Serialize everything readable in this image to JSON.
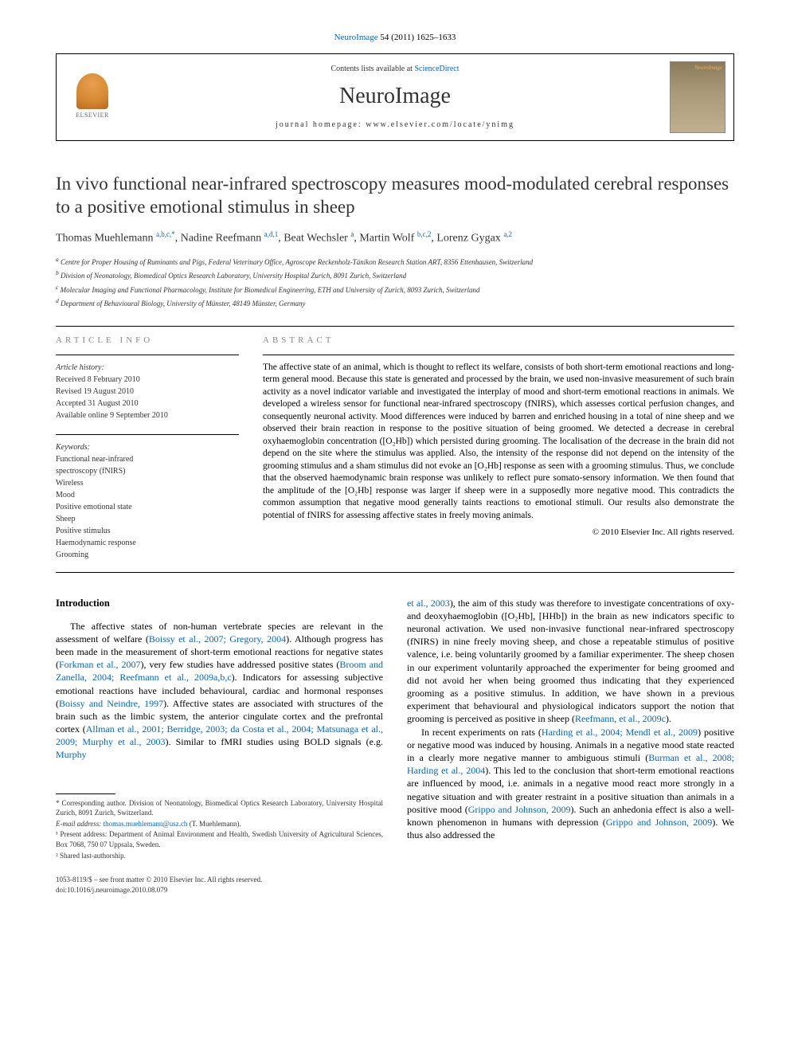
{
  "citation": {
    "journal_link": "NeuroImage",
    "vol_pages": " 54 (2011) 1625–1633"
  },
  "header": {
    "elsevier": "ELSEVIER",
    "contents_prefix": "Contents lists available at ",
    "contents_link": "ScienceDirect",
    "journal": "NeuroImage",
    "homepage_label": "journal homepage: ",
    "homepage_url": "www.elsevier.com/locate/ynimg",
    "cover_label": "NeuroImage"
  },
  "title": "In vivo functional near-infrared spectroscopy measures mood-modulated cerebral responses to a positive emotional stimulus in sheep",
  "authors": [
    {
      "name": "Thomas Muehlemann ",
      "sup": "a,b,c,",
      "star": "*"
    },
    {
      "name": ", Nadine Reefmann ",
      "sup": "a,d,1"
    },
    {
      "name": ", Beat Wechsler ",
      "sup": "a"
    },
    {
      "name": ", Martin Wolf ",
      "sup": "b,c,2"
    },
    {
      "name": ", Lorenz Gygax ",
      "sup": "a,2"
    }
  ],
  "affiliations": {
    "a": "Centre for Proper Housing of Ruminants and Pigs, Federal Veterinary Office, Agroscope Reckenholz-Tänikon Research Station ART, 8356 Ettenhausen, Switzerland",
    "b": "Division of Neonatology, Biomedical Optics Research Laboratory, University Hospital Zurich, 8091 Zurich, Switzerland",
    "c": "Molecular Imaging and Functional Pharmacology, Institute for Biomedical Engineering, ETH and University of Zurich, 8093 Zurich, Switzerland",
    "d": "Department of Behavioural Biology, University of Münster, 48149 Münster, Germany"
  },
  "article_info": {
    "label": "ARTICLE INFO",
    "history_label": "Article history:",
    "received": "Received 8 February 2010",
    "revised": "Revised 19 August 2010",
    "accepted": "Accepted 31 August 2010",
    "online": "Available online 9 September 2010",
    "keywords_label": "Keywords:",
    "keywords": [
      "Functional near-infrared",
      "spectroscopy (fNIRS)",
      "Wireless",
      "Mood",
      "Positive emotional state",
      "Sheep",
      "Positive stimulus",
      "Haemodynamic response",
      "Grooming"
    ]
  },
  "abstract": {
    "label": "ABSTRACT",
    "text": "The affective state of an animal, which is thought to reflect its welfare, consists of both short-term emotional reactions and long-term general mood. Because this state is generated and processed by the brain, we used non-invasive measurement of such brain activity as a novel indicator variable and investigated the interplay of mood and short-term emotional reactions in animals. We developed a wireless sensor for functional near-infrared spectroscopy (fNIRS), which assesses cortical perfusion changes, and consequently neuronal activity. Mood differences were induced by barren and enriched housing in a total of nine sheep and we observed their brain reaction in response to the positive situation of being groomed. We detected a decrease in cerebral oxyhaemoglobin concentration ([O₂Hb]) which persisted during grooming. The localisation of the decrease in the brain did not depend on the site where the stimulus was applied. Also, the intensity of the response did not depend on the intensity of the grooming stimulus and a sham stimulus did not evoke an [O₂Hb] response as seen with a grooming stimulus. Thus, we conclude that the observed haemodynamic brain response was unlikely to reflect pure somato-sensory information. We then found that the amplitude of the [O₂Hb] response was larger if sheep were in a supposedly more negative mood. This contradicts the common assumption that negative mood generally taints reactions to emotional stimuli. Our results also demonstrate the potential of fNIRS for assessing affective states in freely moving animals.",
    "copyright": "© 2010 Elsevier Inc. All rights reserved."
  },
  "body": {
    "heading": "Introduction",
    "col1_p1_a": "The affective states of non-human vertebrate species are relevant in the assessment of welfare (",
    "col1_ref1": "Boissy et al., 2007; Gregory, 2004",
    "col1_p1_b": "). Although progress has been made in the measurement of short-term emotional reactions for negative states (",
    "col1_ref2": "Forkman et al., 2007",
    "col1_p1_c": "), very few studies have addressed positive states (",
    "col1_ref3": "Broom and Zanella, 2004; Reefmann et al., 2009a,b,c",
    "col1_p1_d": "). Indicators for assessing subjective emotional reactions have included behavioural, cardiac and hormonal responses (",
    "col1_ref4": "Boissy and Neindre, 1997",
    "col1_p1_e": "). Affective states are associated with structures of the brain such as the limbic system, the anterior cingulate cortex and the prefrontal cortex (",
    "col1_ref5": "Allman et al., 2001; Berridge, 2003; da Costa et al., 2004; Matsunaga et al., 2009; Murphy et al., 2003",
    "col1_p1_f": "). Similar to fMRI studies using BOLD signals (e.g. ",
    "col1_ref6": "Murphy",
    "col2_ref6b": "et al., 2003",
    "col2_p1_a": "), the aim of this study was therefore to investigate concentrations of oxy- and deoxyhaemoglobin ([O₂Hb], [HHb]) in the brain as new indicators specific to neuronal activation. We used non-invasive functional near-infrared spectroscopy (fNIRS) in nine freely moving sheep, and chose a repeatable stimulus of positive valence, i.e. being voluntarily groomed by a familiar experimenter. The sheep chosen in our experiment voluntarily approached the experimenter for being groomed and did not avoid her when being groomed thus indicating that they experienced grooming as a positive stimulus. In addition, we have shown in a previous experiment that behavioural and physiological indicators support the notion that grooming is perceived as positive in sheep (",
    "col2_ref7": "Reefmann, et al., 2009c",
    "col2_p1_b": ").",
    "col2_p2_a": "In recent experiments on rats (",
    "col2_ref8": "Harding et al., 2004; Mendl et al., 2009",
    "col2_p2_b": ") positive or negative mood was induced by housing. Animals in a negative mood state reacted in a clearly more negative manner to ambiguous stimuli (",
    "col2_ref9": "Burman et al., 2008; Harding et al., 2004",
    "col2_p2_c": "). This led to the conclusion that short-term emotional reactions are influenced by mood, i.e. animals in a negative mood react more strongly in a negative situation and with greater restraint in a positive situation than animals in a positive mood (",
    "col2_ref10": "Grippo and Johnson, 2009",
    "col2_p2_d": "). Such an anhedonia effect is also a well-known phenomenon in humans with depression (",
    "col2_ref11": "Grippo and Johnson, 2009",
    "col2_p2_e": "). We thus also addressed the"
  },
  "footnotes": {
    "corresponding": "* Corresponding author. Division of Neonatology, Biomedical Optics Research Laboratory, University Hospital Zurich, 8091 Zurich, Switzerland.",
    "email_label": "E-mail address: ",
    "email": "thomas.muehlemann@usz.ch",
    "email_suffix": " (T. Muehlemann).",
    "note1": "¹ Present address: Department of Animal Environment and Health, Swedish University of Agricultural Sciences, Box 7068, 750 07 Uppsala, Sweden.",
    "note2": "² Shared last-authorship."
  },
  "bottom": {
    "issn_line": "1053-8119/$ – see front matter © 2010 Elsevier Inc. All rights reserved.",
    "doi": "doi:10.1016/j.neuroimage.2010.08.079"
  },
  "colors": {
    "link": "#0066cc",
    "text": "#000000",
    "muted": "#888888",
    "background": "#ffffff"
  }
}
